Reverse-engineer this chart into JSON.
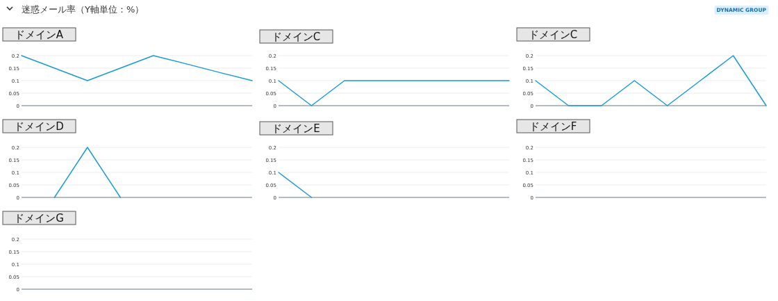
{
  "chart_data": [
    {
      "type": "other",
      "title": "迷惑メール率（Y軸単位：%）",
      "annotations": [
        "DYNAMIC GROUP"
      ]
    },
    {
      "type": "line",
      "title": "ドメインA",
      "categories": [
        null,
        null,
        null,
        null,
        null,
        null,
        null,
        null
      ],
      "series": [
        {
          "color": "#1a9bd7",
          "values": [
            0.2,
            0.15,
            0.1,
            0.15,
            0.2,
            0.167,
            0.133,
            0.1
          ]
        }
      ],
      "ylim": [
        0,
        0.2
      ],
      "yticks": [
        0,
        0.05,
        0.1,
        0.15,
        0.2
      ],
      "grid": "y"
    },
    {
      "type": "line",
      "title": "ドメインC",
      "categories": [
        null,
        null,
        null,
        null,
        null,
        null,
        null,
        null
      ],
      "series": [
        {
          "color": "#1a9bd7",
          "values": [
            0.1,
            0,
            0.1,
            0.1,
            0.1,
            0.1,
            0.1,
            0.1
          ]
        }
      ],
      "ylim": [
        0,
        0.2
      ],
      "yticks": [
        0,
        0.05,
        0.1,
        0.15,
        0.2
      ],
      "grid": "y"
    },
    {
      "type": "line",
      "title": "ドメインC",
      "categories": [
        null,
        null,
        null,
        null,
        null,
        null,
        null,
        null
      ],
      "series": [
        {
          "color": "#1a9bd7",
          "values": [
            0.1,
            0,
            0,
            0.1,
            0,
            0.1,
            0.2,
            0
          ]
        }
      ],
      "ylim": [
        0,
        0.2
      ],
      "yticks": [
        0,
        0.05,
        0.1,
        0.15,
        0.2
      ],
      "grid": "y"
    },
    {
      "type": "line",
      "title": "ドメインD",
      "categories": [
        null,
        null,
        null,
        null,
        null,
        null,
        null,
        null
      ],
      "series": [
        {
          "color": "#1a9bd7",
          "values": [
            null,
            0,
            0.2,
            0,
            null,
            null,
            null,
            null
          ]
        }
      ],
      "ylim": [
        0,
        0.2
      ],
      "yticks": [
        0,
        0.05,
        0.1,
        0.15,
        0.2
      ],
      "grid": "y"
    },
    {
      "type": "line",
      "title": "ドメインE",
      "categories": [
        null,
        null,
        null,
        null,
        null,
        null,
        null,
        null
      ],
      "series": [
        {
          "color": "#1a9bd7",
          "values": [
            0.1,
            0,
            null,
            null,
            null,
            null,
            null,
            null
          ]
        }
      ],
      "ylim": [
        0,
        0.2
      ],
      "yticks": [
        0,
        0.05,
        0.1,
        0.15,
        0.2
      ],
      "grid": "y"
    },
    {
      "type": "line",
      "title": "ドメインF",
      "categories": [
        null,
        null,
        null,
        null,
        null,
        null,
        null,
        null
      ],
      "ylim": [
        0,
        0.2
      ],
      "yticks": [
        0,
        0.05,
        0.1,
        0.15,
        0.2
      ],
      "grid": "y"
    },
    {
      "type": "line",
      "title": "ドメインG",
      "categories": [
        null,
        null,
        null,
        null,
        null,
        null,
        null,
        null
      ],
      "ylim": [
        0,
        0.2
      ],
      "yticks": [
        0,
        0.05,
        0.1,
        0.15,
        0.2
      ],
      "grid": "y"
    }
  ]
}
